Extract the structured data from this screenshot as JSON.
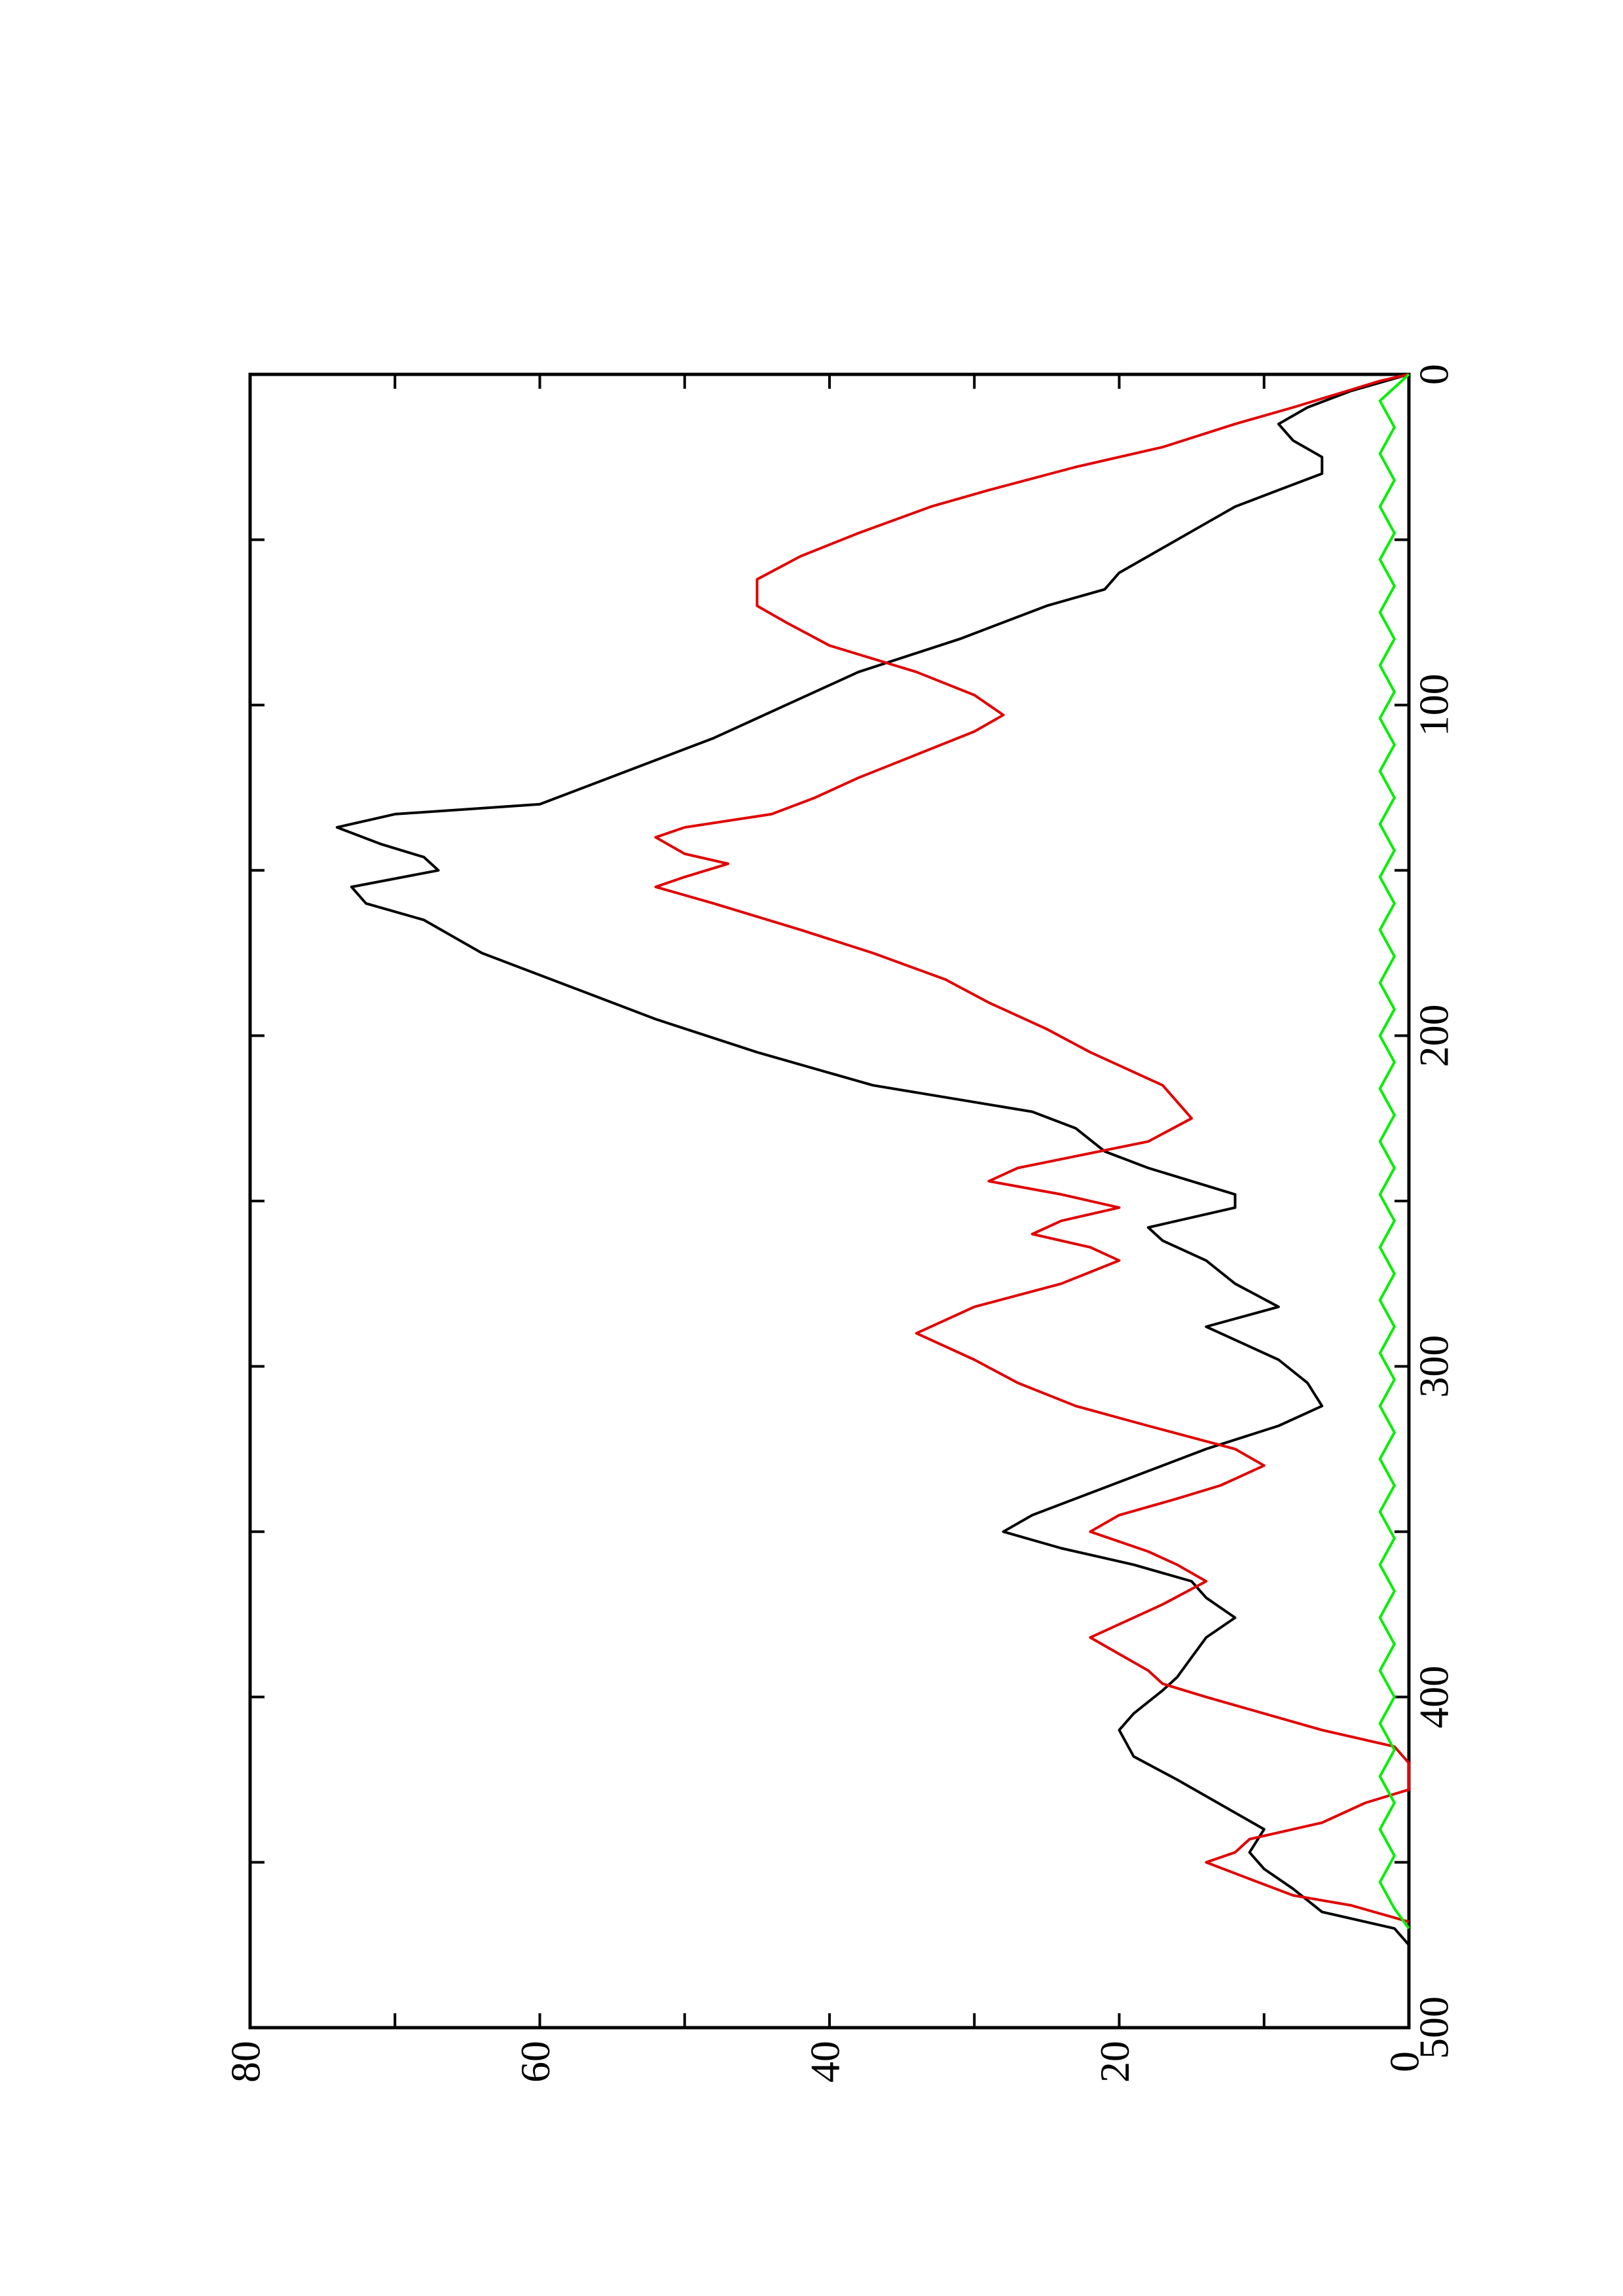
{
  "chart_data": {
    "type": "line",
    "title": "",
    "xlabel": "",
    "ylabel": "",
    "xlim": [
      0,
      500
    ],
    "ylim": [
      0,
      80
    ],
    "grid": false,
    "orientation": "rotated 90 degrees counter-clockwise on page",
    "x_ticks": [
      0,
      50,
      100,
      150,
      200,
      250,
      300,
      350,
      400,
      450,
      500
    ],
    "x_tick_labels": [
      "0",
      "100",
      "200",
      "300",
      "400",
      "500"
    ],
    "x_tick_label_values": [
      0,
      100,
      200,
      300,
      400,
      500
    ],
    "y_ticks": [
      0,
      10,
      20,
      30,
      40,
      50,
      60,
      70,
      80
    ],
    "y_tick_labels": [
      "0",
      "20",
      "40",
      "60",
      "80"
    ],
    "y_tick_label_values": [
      0,
      20,
      40,
      60,
      80
    ],
    "series": [
      {
        "color": "#000000",
        "points": [
          [
            0,
            0
          ],
          [
            5,
            4
          ],
          [
            10,
            7
          ],
          [
            15,
            9
          ],
          [
            20,
            8
          ],
          [
            25,
            6
          ],
          [
            30,
            6
          ],
          [
            35,
            9
          ],
          [
            40,
            12
          ],
          [
            45,
            14
          ],
          [
            50,
            16
          ],
          [
            55,
            18
          ],
          [
            60,
            20
          ],
          [
            65,
            21
          ],
          [
            70,
            25
          ],
          [
            80,
            31
          ],
          [
            90,
            38
          ],
          [
            100,
            43
          ],
          [
            110,
            48
          ],
          [
            120,
            54
          ],
          [
            130,
            60
          ],
          [
            133,
            70
          ],
          [
            137,
            74
          ],
          [
            142,
            71
          ],
          [
            146,
            68
          ],
          [
            150,
            67
          ],
          [
            155,
            73
          ],
          [
            160,
            72
          ],
          [
            165,
            68
          ],
          [
            175,
            64
          ],
          [
            185,
            58
          ],
          [
            195,
            52
          ],
          [
            205,
            45
          ],
          [
            215,
            37
          ],
          [
            223,
            26
          ],
          [
            228,
            23
          ],
          [
            235,
            21
          ],
          [
            240,
            18
          ],
          [
            248,
            12
          ],
          [
            252,
            12
          ],
          [
            258,
            18
          ],
          [
            262,
            17
          ],
          [
            268,
            14
          ],
          [
            275,
            12
          ],
          [
            282,
            9
          ],
          [
            288,
            14
          ],
          [
            292,
            12
          ],
          [
            298,
            9
          ],
          [
            305,
            7
          ],
          [
            312,
            6
          ],
          [
            318,
            9
          ],
          [
            325,
            14
          ],
          [
            335,
            20
          ],
          [
            345,
            26
          ],
          [
            350,
            28
          ],
          [
            355,
            24
          ],
          [
            360,
            19
          ],
          [
            365,
            15
          ],
          [
            370,
            14
          ],
          [
            376,
            12
          ],
          [
            382,
            14
          ],
          [
            388,
            15
          ],
          [
            394,
            16
          ],
          [
            398,
            17
          ],
          [
            405,
            19
          ],
          [
            410,
            20
          ],
          [
            418,
            19
          ],
          [
            425,
            16
          ],
          [
            430,
            14
          ],
          [
            435,
            12
          ],
          [
            440,
            10
          ],
          [
            447,
            11
          ],
          [
            452,
            10
          ],
          [
            458,
            8
          ],
          [
            465,
            6
          ],
          [
            470,
            1
          ],
          [
            475,
            0
          ]
        ]
      },
      {
        "color": "#e00000",
        "points": [
          [
            0,
            0
          ],
          [
            2,
            2
          ],
          [
            10,
            8
          ],
          [
            15,
            12
          ],
          [
            22,
            17
          ],
          [
            28,
            23
          ],
          [
            35,
            29
          ],
          [
            40,
            33
          ],
          [
            48,
            38
          ],
          [
            55,
            42
          ],
          [
            62,
            45
          ],
          [
            70,
            45
          ],
          [
            75,
            43
          ],
          [
            82,
            40
          ],
          [
            90,
            34
          ],
          [
            97,
            30
          ],
          [
            100,
            29
          ],
          [
            103,
            28
          ],
          [
            108,
            30
          ],
          [
            115,
            34
          ],
          [
            122,
            38
          ],
          [
            128,
            41
          ],
          [
            133,
            44
          ],
          [
            137,
            50
          ],
          [
            140,
            52
          ],
          [
            145,
            50
          ],
          [
            148,
            47
          ],
          [
            152,
            50
          ],
          [
            155,
            52
          ],
          [
            160,
            48
          ],
          [
            168,
            42
          ],
          [
            175,
            37
          ],
          [
            183,
            32
          ],
          [
            190,
            29
          ],
          [
            198,
            25
          ],
          [
            205,
            22
          ],
          [
            215,
            17
          ],
          [
            225,
            15
          ],
          [
            232,
            18
          ],
          [
            240,
            27
          ],
          [
            244,
            29
          ],
          [
            248,
            24
          ],
          [
            252,
            20
          ],
          [
            256,
            24
          ],
          [
            260,
            26
          ],
          [
            264,
            22
          ],
          [
            268,
            20
          ],
          [
            275,
            24
          ],
          [
            282,
            30
          ],
          [
            290,
            34
          ],
          [
            298,
            30
          ],
          [
            305,
            27
          ],
          [
            312,
            23
          ],
          [
            318,
            18
          ],
          [
            325,
            12
          ],
          [
            330,
            10
          ],
          [
            336,
            13
          ],
          [
            340,
            16
          ],
          [
            345,
            20
          ],
          [
            350,
            22
          ],
          [
            356,
            18
          ],
          [
            360,
            16
          ],
          [
            365,
            14
          ],
          [
            372,
            17
          ],
          [
            378,
            20
          ],
          [
            382,
            22
          ],
          [
            387,
            20
          ],
          [
            392,
            18
          ],
          [
            396,
            17
          ],
          [
            400,
            14
          ],
          [
            405,
            10
          ],
          [
            410,
            6
          ],
          [
            415,
            1
          ],
          [
            420,
            0
          ],
          [
            428,
            0
          ],
          [
            432,
            3
          ],
          [
            438,
            6
          ],
          [
            443,
            11
          ],
          [
            447,
            12
          ],
          [
            450,
            14
          ],
          [
            455,
            11
          ],
          [
            460,
            8
          ],
          [
            463,
            4
          ],
          [
            468,
            0
          ]
        ]
      },
      {
        "color": "#00ee00",
        "points": [
          [
            0,
            0
          ],
          [
            8,
            2
          ],
          [
            16,
            1
          ],
          [
            24,
            2
          ],
          [
            32,
            1
          ],
          [
            40,
            2
          ],
          [
            48,
            1
          ],
          [
            56,
            2
          ],
          [
            64,
            1
          ],
          [
            72,
            2
          ],
          [
            80,
            1
          ],
          [
            88,
            2
          ],
          [
            96,
            1
          ],
          [
            104,
            2
          ],
          [
            112,
            1
          ],
          [
            120,
            2
          ],
          [
            128,
            1
          ],
          [
            136,
            2
          ],
          [
            144,
            1
          ],
          [
            152,
            2
          ],
          [
            160,
            1
          ],
          [
            168,
            2
          ],
          [
            176,
            1
          ],
          [
            184,
            2
          ],
          [
            192,
            1
          ],
          [
            200,
            2
          ],
          [
            208,
            1
          ],
          [
            216,
            2
          ],
          [
            224,
            1
          ],
          [
            232,
            2
          ],
          [
            240,
            1
          ],
          [
            248,
            2
          ],
          [
            256,
            1
          ],
          [
            264,
            2
          ],
          [
            272,
            1
          ],
          [
            280,
            2
          ],
          [
            288,
            1
          ],
          [
            296,
            2
          ],
          [
            304,
            1
          ],
          [
            312,
            2
          ],
          [
            320,
            1
          ],
          [
            328,
            2
          ],
          [
            336,
            1
          ],
          [
            344,
            2
          ],
          [
            352,
            1
          ],
          [
            360,
            2
          ],
          [
            368,
            1
          ],
          [
            376,
            2
          ],
          [
            384,
            1
          ],
          [
            392,
            2
          ],
          [
            400,
            1
          ],
          [
            408,
            2
          ],
          [
            416,
            1
          ],
          [
            424,
            2
          ],
          [
            432,
            1
          ],
          [
            440,
            2
          ],
          [
            448,
            1
          ],
          [
            456,
            2
          ],
          [
            464,
            1
          ],
          [
            470,
            0
          ]
        ]
      }
    ]
  }
}
